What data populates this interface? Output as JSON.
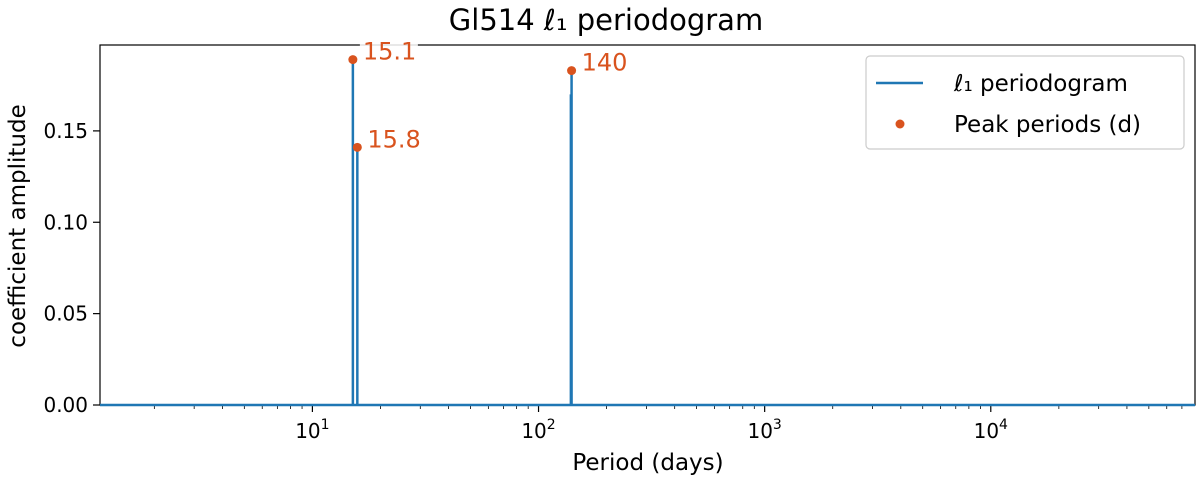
{
  "chart_data": {
    "type": "line",
    "title": "Gl514  ℓ₁ periodogram",
    "xlabel": "Period (days)",
    "ylabel": "coefficient amplitude",
    "xscale": "log",
    "xlim": [
      1.15,
      80000
    ],
    "ylim": [
      0,
      0.197
    ],
    "xticks": [
      {
        "value": 10,
        "label": "10¹"
      },
      {
        "value": 100,
        "label": "10²"
      },
      {
        "value": 1000,
        "label": "10³"
      },
      {
        "value": 10000,
        "label": "10⁴"
      }
    ],
    "yticks": [
      {
        "value": 0.0,
        "label": "0.00"
      },
      {
        "value": 0.05,
        "label": "0.05"
      },
      {
        "value": 0.1,
        "label": "0.10"
      },
      {
        "value": 0.15,
        "label": "0.15"
      }
    ],
    "grid": false,
    "legend_position": "top-right",
    "series": [
      {
        "name": "ℓ₁ periodogram",
        "style": "line",
        "color": "#1f77b4",
        "points": [
          {
            "x": 15.1,
            "y": 0.189
          },
          {
            "x": 15.8,
            "y": 0.141
          },
          {
            "x": 139,
            "y": 0.17
          },
          {
            "x": 140,
            "y": 0.183
          }
        ]
      },
      {
        "name": "Peak periods (d)",
        "style": "marker",
        "color": "#d9531e",
        "points": [
          {
            "x": 15.1,
            "y": 0.189,
            "label": "15.1"
          },
          {
            "x": 15.8,
            "y": 0.141,
            "label": "15.8"
          },
          {
            "x": 140,
            "y": 0.183,
            "label": "140"
          }
        ]
      }
    ]
  }
}
